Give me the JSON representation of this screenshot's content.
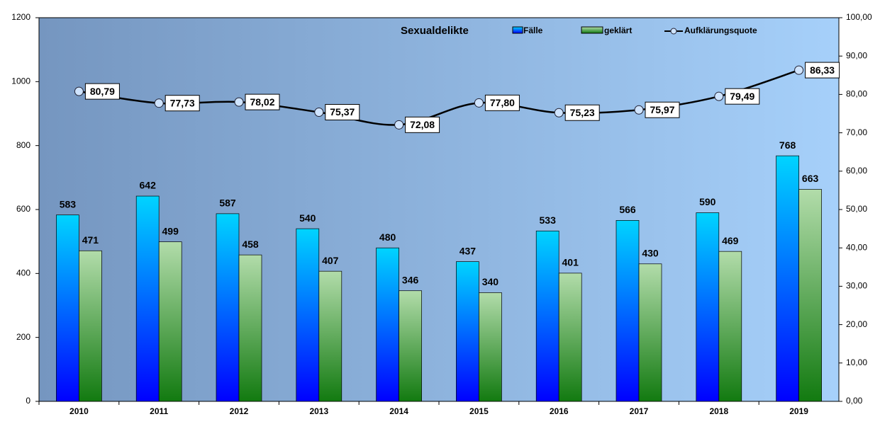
{
  "chart_data": {
    "type": "bar-line",
    "title": "Sexualdelikte",
    "categories": [
      "2010",
      "2011",
      "2012",
      "2013",
      "2014",
      "2015",
      "2016",
      "2017",
      "2018",
      "2019"
    ],
    "series": [
      {
        "name": "Fälle",
        "type": "bar",
        "color": "#00ccff",
        "values": [
          583,
          642,
          587,
          540,
          480,
          437,
          533,
          566,
          590,
          768
        ]
      },
      {
        "name": "geklärt",
        "type": "bar",
        "color": "#a8d8a0",
        "values": [
          471,
          499,
          458,
          407,
          346,
          340,
          401,
          430,
          469,
          663
        ]
      },
      {
        "name": "Aufklärungsquote",
        "type": "line",
        "axis": "y2",
        "color": "#000000",
        "values": [
          80.79,
          77.73,
          78.02,
          75.37,
          72.08,
          77.8,
          75.23,
          75.97,
          79.49,
          86.33
        ],
        "value_labels": [
          "80,79",
          "77,73",
          "78,02",
          "75,37",
          "72,08",
          "77,80",
          "75,23",
          "75,97",
          "79,49",
          "86,33"
        ]
      }
    ],
    "ylim": [
      0,
      1200
    ],
    "yticks": [
      0,
      200,
      400,
      600,
      800,
      1000,
      1200
    ],
    "y2lim": [
      0,
      100
    ],
    "y2ticks": [
      {
        "value": 0,
        "label": "0,00"
      },
      {
        "value": 10,
        "label": "10,00"
      },
      {
        "value": 20,
        "label": "20,00"
      },
      {
        "value": 30,
        "label": "30,00"
      },
      {
        "value": 40,
        "label": "40,00"
      },
      {
        "value": 50,
        "label": "50,00"
      },
      {
        "value": 60,
        "label": "60,00"
      },
      {
        "value": 70,
        "label": "70,00"
      },
      {
        "value": 80,
        "label": "80,00"
      },
      {
        "value": 90,
        "label": "90,00"
      },
      {
        "value": 100,
        "label": "100,00"
      }
    ]
  }
}
